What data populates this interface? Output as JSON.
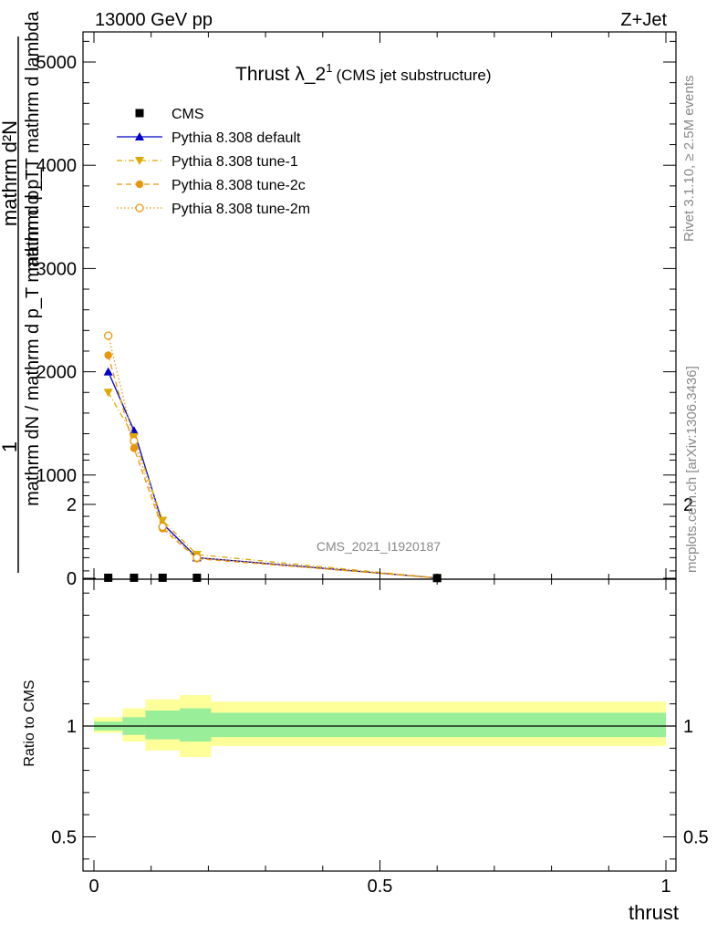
{
  "header": {
    "energy_label": "13000 GeV pp",
    "process_label": "Z+Jet"
  },
  "side_labels": {
    "rivet": "Rivet 3.1.10, ≥ 2.5M events",
    "mcplots": "mcplots.cern.ch [arXiv:1306.3436]"
  },
  "chart_data": {
    "type": "line",
    "title": "Thrust λ_2",
    "title_superscript": "1",
    "subtitle": "(CMS jet substructure)",
    "analysis_id": "CMS_2021_I1920187",
    "xlabel": "thrust",
    "ylabel_parts": {
      "numerator": "1",
      "denominator": "mathrm dN / mathrm d p_T mathrm d p_T",
      "right_numerator": "mathrm d²N",
      "right_denominator": "mathrm d p_T mathrm d lambda"
    },
    "xlim": [
      -0.02,
      1.0
    ],
    "ylim": [
      0,
      5300
    ],
    "x_ticks": [
      0,
      0.5,
      1
    ],
    "x_tick_labels": [
      "0",
      "0.5",
      "1"
    ],
    "y_ticks": [
      0,
      1000,
      2000,
      3000,
      4000,
      5000
    ],
    "y_tick_labels": [
      "0",
      "1000",
      "2000",
      "3000",
      "4000",
      "5000"
    ],
    "ratio": {
      "ylabel": "Ratio to CMS",
      "ylim": [
        0.35,
        2.3
      ],
      "y_ticks": [
        0.5,
        1,
        2
      ],
      "y_tick_labels": [
        "0.5",
        "1",
        "2"
      ]
    },
    "data_series": {
      "name": "CMS",
      "x": [
        0.025,
        0.07,
        0.12,
        0.18,
        0.6
      ],
      "y": [
        5,
        5,
        5,
        5,
        2
      ]
    },
    "series": [
      {
        "name": "Pythia 8.308 default",
        "color": "#0000cc",
        "marker": "triangle-up",
        "line": "solid",
        "x": [
          0.025,
          0.07,
          0.12,
          0.18,
          0.6
        ],
        "y": [
          2000,
          1430,
          530,
          200,
          3
        ]
      },
      {
        "name": "Pythia 8.308 tune-1",
        "color": "#ddaa00",
        "marker": "triangle-down",
        "line": "dashdot",
        "x": [
          0.025,
          0.07,
          0.12,
          0.18,
          0.6
        ],
        "y": [
          1800,
          1370,
          560,
          230,
          3
        ]
      },
      {
        "name": "Pythia 8.308 tune-2c",
        "color": "#e8960a",
        "marker": "circle",
        "line": "dashed",
        "x": [
          0.025,
          0.07,
          0.12,
          0.18,
          0.6
        ],
        "y": [
          2160,
          1260,
          480,
          190,
          3
        ]
      },
      {
        "name": "Pythia 8.308 tune-2m",
        "color": "#e8960a",
        "marker": "circle-open",
        "line": "dotted",
        "x": [
          0.025,
          0.07,
          0.12,
          0.18,
          0.6
        ],
        "y": [
          2350,
          1330,
          500,
          200,
          3
        ]
      }
    ],
    "uncertainty_bands": {
      "bins": [
        [
          0,
          0.05
        ],
        [
          0.05,
          0.09
        ],
        [
          0.09,
          0.15
        ],
        [
          0.15,
          0.205
        ],
        [
          0.205,
          1.0
        ]
      ],
      "inner": [
        [
          0.98,
          1.02
        ],
        [
          0.96,
          1.04
        ],
        [
          0.94,
          1.07
        ],
        [
          0.93,
          1.08
        ],
        [
          0.95,
          1.06
        ]
      ],
      "outer": [
        [
          0.97,
          1.04
        ],
        [
          0.93,
          1.08
        ],
        [
          0.89,
          1.12
        ],
        [
          0.86,
          1.14
        ],
        [
          0.91,
          1.11
        ]
      ],
      "inner_color": "#99ee99",
      "outer_color": "#ffff99"
    },
    "legend_placement": "top-left",
    "grid": false
  }
}
